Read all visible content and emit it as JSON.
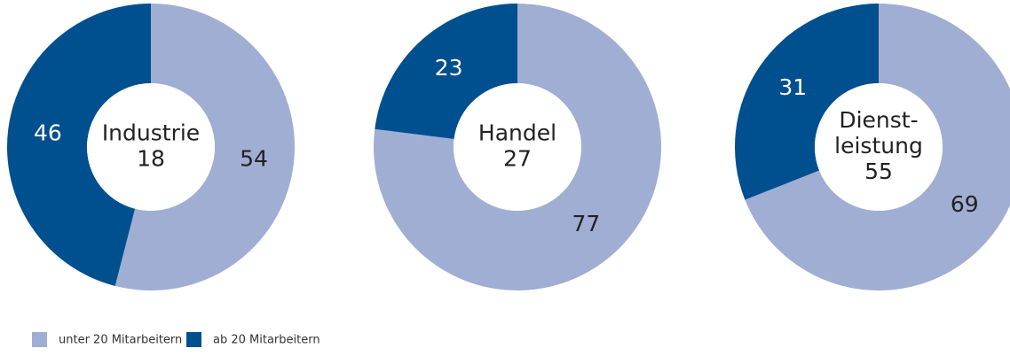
{
  "legend": {
    "labels": [
      "unter 20 Mitarbeitern",
      "ab 20 Mitarbeitern"
    ],
    "colors": [
      "#a0aed3",
      "#004f8f"
    ]
  },
  "chart_data": [
    {
      "type": "donut",
      "title": [
        "Industrie"
      ],
      "n": 18,
      "values": [
        54,
        46
      ]
    },
    {
      "type": "donut",
      "title": [
        "Handel"
      ],
      "n": 27,
      "values": [
        77,
        23
      ]
    },
    {
      "type": "donut",
      "title": [
        "Dienst-",
        "leistung"
      ],
      "n": 55,
      "values": [
        69,
        31
      ]
    }
  ]
}
